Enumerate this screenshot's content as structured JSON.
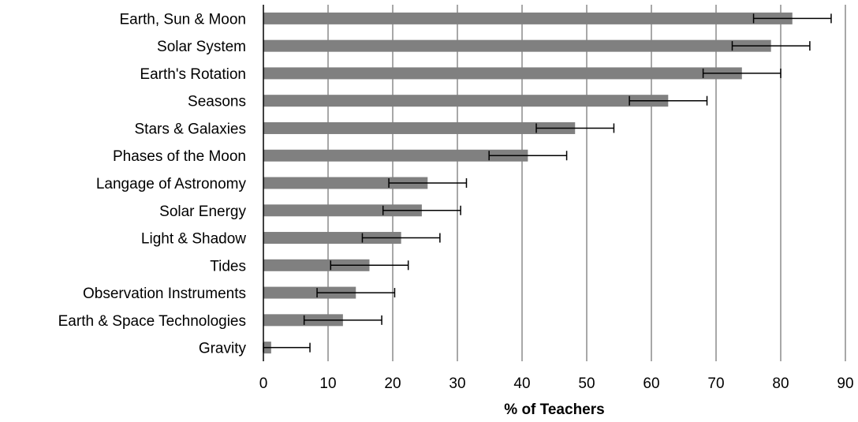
{
  "chart_data": {
    "type": "bar",
    "orientation": "horizontal",
    "categories": [
      "Earth, Sun & Moon",
      "Solar System",
      "Earth's Rotation",
      "Seasons",
      "Stars & Galaxies",
      "Phases of the Moon",
      "Langage of Astronomy",
      "Solar Energy",
      "Light & Shadow",
      "Tides",
      "Observation Instruments",
      "Earth & Space Technologies",
      "Gravity"
    ],
    "values": [
      81.8,
      78.5,
      74.0,
      62.6,
      48.2,
      40.9,
      25.4,
      24.5,
      21.3,
      16.4,
      14.3,
      12.3,
      1.2
    ],
    "error_plus_minus": 6,
    "xlabel": "% of Teachers",
    "ylabel": "",
    "xlim": [
      0,
      90
    ],
    "xticks": [
      0,
      10,
      20,
      30,
      40,
      50,
      60,
      70,
      80,
      90
    ],
    "grid": "vertical",
    "legend": "none",
    "colors": {
      "bar": "#808080",
      "grid": "#8c8c8c",
      "error_bar": "#000000",
      "axis": "#000000"
    }
  }
}
